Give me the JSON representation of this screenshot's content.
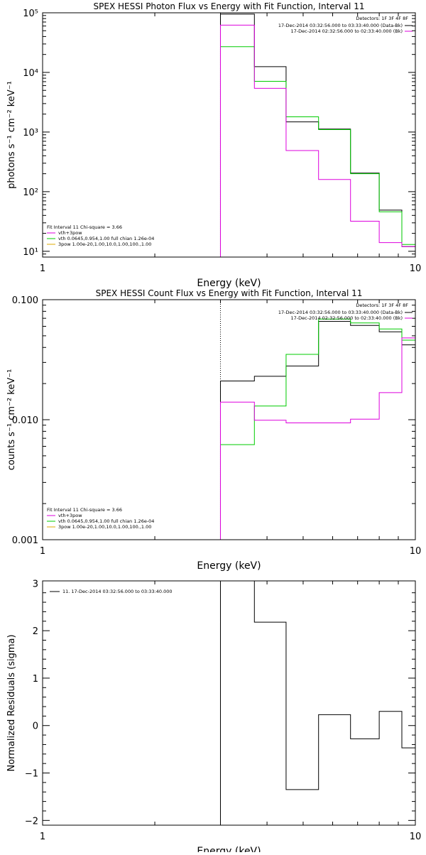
{
  "chart_data": [
    {
      "type": "line",
      "title": "SPEX HESSI Photon Flux vs Energy with Fit Function, Interval 11",
      "xlabel": "Energy (keV)",
      "ylabel": "photons s⁻¹ cm⁻² keV⁻¹",
      "xscale": "log",
      "yscale": "log",
      "xlim": [
        1,
        10
      ],
      "ylim": [
        8,
        100000
      ],
      "x_ticks": [
        "1",
        "10"
      ],
      "y_ticks": [
        {
          "v": 10,
          "label": "10¹"
        },
        {
          "v": 100,
          "label": "10²"
        },
        {
          "v": 1000,
          "label": "10³"
        },
        {
          "v": 10000,
          "label": "10⁴"
        },
        {
          "v": 100000,
          "label": "10⁵"
        }
      ],
      "dotted_x": 3.0,
      "edges": [
        3.0,
        3.7,
        4.5,
        5.5,
        6.7,
        8.0,
        9.2,
        10.0
      ],
      "series": [
        {
          "name": "17-Dec-2014 03:32:56.000 to 03:33:40.000 (Data-Bk)",
          "color": "#000000",
          "values": [
            95000,
            12500,
            1480,
            1120,
            205,
            49,
            12
          ]
        },
        {
          "color": "#00cc00",
          "values": [
            27000,
            7100,
            1800,
            1100,
            200,
            46,
            13
          ]
        },
        {
          "name": "17-Dec-2014 02:32:56.000 to 02:33:40.000 (Bk)",
          "color": "#dd00dd",
          "values": [
            62000,
            5400,
            490,
            160,
            32,
            14,
            12
          ]
        }
      ],
      "legend_right": {
        "header": "Detectors: 1F 3F 4F 8F",
        "entries": [
          "17-Dec-2014 03:32:56.000 to 03:33:40.000 (Data-Bk)",
          "17-Dec-2014 02:32:56.000 to 02:33:40.000 (Bk)"
        ],
        "colors": [
          "#000000",
          "#dd00dd"
        ]
      },
      "legend_left": {
        "header": "Fit Interval 11     Chi-square = 3.66",
        "entries": [
          "vth+3pow",
          "vth 0.0645,0.954,1.00  full chian 1.26e-04",
          "3pow 1.00e-20,1.00,10.0,1.00,100.,1.00"
        ],
        "colors": [
          "#dd00dd",
          "#00cc00",
          "#ddaa00"
        ]
      }
    },
    {
      "type": "line",
      "title": "SPEX HESSI Count Flux vs Energy with Fit Function, Interval 11",
      "xlabel": "Energy (keV)",
      "ylabel": "counts s⁻¹ cm⁻² keV⁻¹",
      "xscale": "log",
      "yscale": "log",
      "xlim": [
        1,
        10
      ],
      "ylim": [
        0.001,
        0.1
      ],
      "x_ticks": [
        "1",
        "10"
      ],
      "y_ticks": [
        {
          "v": 0.001,
          "label": "0.001"
        },
        {
          "v": 0.01,
          "label": "0.010"
        },
        {
          "v": 0.1,
          "label": "0.100"
        }
      ],
      "dotted_x": 3.0,
      "edges": [
        3.0,
        3.7,
        4.5,
        5.5,
        6.7,
        8.0,
        9.2,
        10.0
      ],
      "series": [
        {
          "name": "17-Dec-2014 03:32:56.000 to 03:33:40.000 (Data-Bk)",
          "color": "#000000",
          "values": [
            0.021,
            0.023,
            0.028,
            0.066,
            0.061,
            0.054,
            0.042
          ]
        },
        {
          "color": "#00cc00",
          "values": [
            0.0062,
            0.013,
            0.035,
            0.069,
            0.064,
            0.057,
            0.046
          ]
        },
        {
          "name": "17-Dec-2014 02:32:56.000 to 02:33:40.000 (Bk)",
          "color": "#dd00dd",
          "values": [
            0.014,
            0.0099,
            0.0094,
            0.0094,
            0.0101,
            0.0168,
            0.048
          ]
        }
      ],
      "legend_right": {
        "header": "Detectors: 1F 3F 4F 8F",
        "entries": [
          "17-Dec-2014 03:32:56.000 to 03:33:40.000 (Data-Bk)",
          "17-Dec-2014 02:32:56.000 to 02:33:40.000 (Bk)"
        ],
        "colors": [
          "#000000",
          "#dd00dd"
        ]
      },
      "legend_left": {
        "header": "Fit Interval 11     Chi-square = 3.66",
        "entries": [
          "vth+3pow",
          "vth 0.0645,0.954,1.00  full chian 1.26e-04",
          "3pow 1.00e-20,1.00,10.0,1.00,100.,1.00"
        ],
        "colors": [
          "#dd00dd",
          "#00cc00",
          "#ddaa00"
        ]
      }
    },
    {
      "type": "line",
      "title": "",
      "xlabel": "Energy (keV)",
      "ylabel": "Normalized Residuals (sigma)",
      "xscale": "log",
      "yscale": "linear",
      "xlim": [
        1,
        10
      ],
      "ylim": [
        -2.1,
        3.05
      ],
      "x_ticks": [
        "1",
        "10"
      ],
      "y_ticks": [
        {
          "v": -2,
          "label": "−2"
        },
        {
          "v": -1,
          "label": "−1"
        },
        {
          "v": 0,
          "label": "0"
        },
        {
          "v": 1,
          "label": "1"
        },
        {
          "v": 2,
          "label": "2"
        },
        {
          "v": 3,
          "label": "3"
        }
      ],
      "edges": [
        3.0,
        3.7,
        4.5,
        5.5,
        6.7,
        8.0,
        9.2,
        10.0
      ],
      "start_from_min": true,
      "series": [
        {
          "name": "11. 17-Dec-2014 03:32:56.000 to 03:33:40.000",
          "color": "#000000",
          "values": [
            3.4,
            2.18,
            -1.35,
            0.23,
            -0.28,
            0.3,
            -0.47
          ]
        }
      ],
      "legend_left_top": {
        "entries": [
          "11. 17-Dec-2014 03:32:56.000 to 03:33:40.000"
        ],
        "colors": [
          "#000000"
        ]
      }
    }
  ]
}
